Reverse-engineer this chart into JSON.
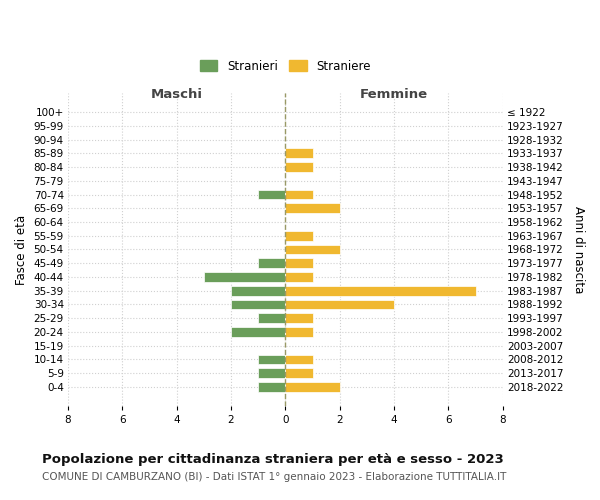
{
  "age_groups": [
    "100+",
    "95-99",
    "90-94",
    "85-89",
    "80-84",
    "75-79",
    "70-74",
    "65-69",
    "60-64",
    "55-59",
    "50-54",
    "45-49",
    "40-44",
    "35-39",
    "30-34",
    "25-29",
    "20-24",
    "15-19",
    "10-14",
    "5-9",
    "0-4"
  ],
  "birth_years": [
    "≤ 1922",
    "1923-1927",
    "1928-1932",
    "1933-1937",
    "1938-1942",
    "1943-1947",
    "1948-1952",
    "1953-1957",
    "1958-1962",
    "1963-1967",
    "1968-1972",
    "1973-1977",
    "1978-1982",
    "1983-1987",
    "1988-1992",
    "1993-1997",
    "1998-2002",
    "2003-2007",
    "2008-2012",
    "2013-2017",
    "2018-2022"
  ],
  "males": [
    0,
    0,
    0,
    0,
    0,
    0,
    1,
    0,
    0,
    0,
    0,
    1,
    3,
    2,
    2,
    1,
    2,
    0,
    1,
    1,
    1
  ],
  "females": [
    0,
    0,
    0,
    1,
    1,
    0,
    1,
    2,
    0,
    1,
    2,
    1,
    1,
    7,
    4,
    1,
    1,
    0,
    1,
    1,
    2
  ],
  "male_color": "#6a9e5a",
  "female_color": "#f0b830",
  "bar_edge_color": "white",
  "background_color": "#ffffff",
  "grid_color": "#d0d0d0",
  "dashed_line_color": "#999966",
  "title": "Popolazione per cittadinanza straniera per età e sesso - 2023",
  "subtitle": "COMUNE DI CAMBURZANO (BI) - Dati ISTAT 1° gennaio 2023 - Elaborazione TUTTITALIA.IT",
  "ylabel_left": "Fasce di età",
  "ylabel_right": "Anni di nascita",
  "xlabel_left": "Maschi",
  "xlabel_right": "Femmine",
  "legend_males": "Stranieri",
  "legend_females": "Straniere",
  "xlim": 8,
  "title_fontsize": 9.5,
  "subtitle_fontsize": 7.5,
  "tick_fontsize": 7.5,
  "label_fontsize": 8.5
}
